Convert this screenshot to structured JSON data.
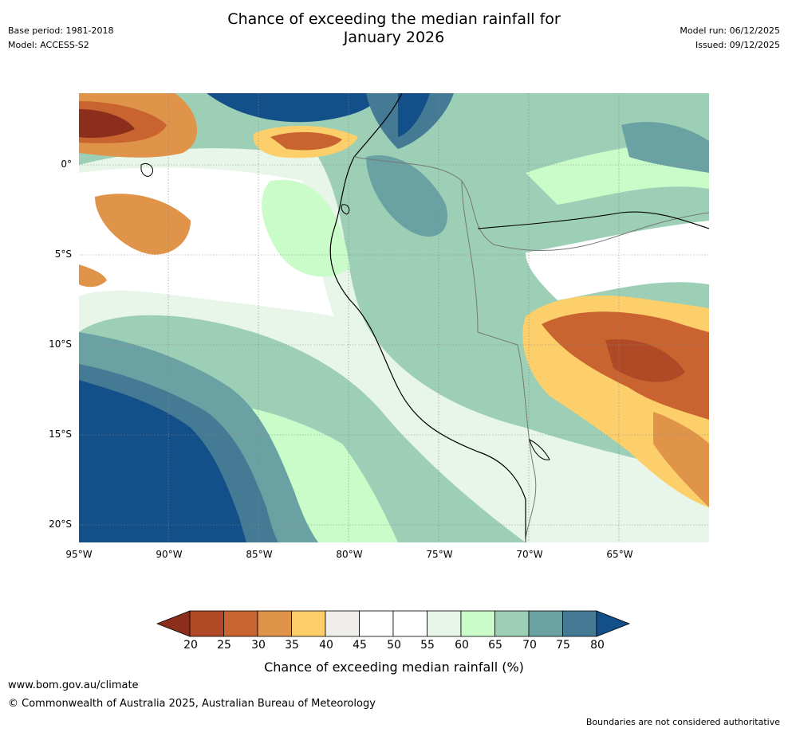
{
  "header": {
    "title_line1": "Chance of exceeding the median rainfall for",
    "title_line2": "January 2026",
    "base_period": "Base period: 1981-2018",
    "model": "Model: ACCESS-S2",
    "model_run": "Model run: 06/12/2025",
    "issued": "Issued: 09/12/2025"
  },
  "map": {
    "region": "Western South America",
    "lat_labels": [
      "0°",
      "5°S",
      "10°S",
      "15°S",
      "20°S"
    ],
    "lon_labels": [
      "95°W",
      "90°W",
      "85°W",
      "80°W",
      "75°W",
      "70°W",
      "65°W"
    ],
    "features": [
      {
        "name": "north-pacific-high-chance",
        "category": "80+"
      },
      {
        "name": "northwest-dry-patch",
        "category": "20-25"
      },
      {
        "name": "south-pacific-high-chance",
        "category": "80+"
      },
      {
        "name": "eastern-dry-region",
        "category": "20-30"
      }
    ]
  },
  "colorbar": {
    "ticks": [
      "20",
      "25",
      "30",
      "35",
      "40",
      "45",
      "50",
      "55",
      "60",
      "65",
      "70",
      "75",
      "80"
    ],
    "colors": [
      "#8b2f1c",
      "#b04a26",
      "#c96431",
      "#df9449",
      "#fdcf6b",
      "#f0eeea",
      "#ffffff",
      "#ffffff",
      "#e8f5e9",
      "#c9fcc9",
      "#9ccfb6",
      "#6aa1a3",
      "#447a94",
      "#134f89"
    ],
    "title": "Chance of exceeding median rainfall (%)"
  },
  "footer": {
    "url": "www.bom.gov.au/climate",
    "copyright": "© Commonwealth of Australia 2025, Australian Bureau of Meteorology",
    "note": "Boundaries are not considered authoritative"
  }
}
